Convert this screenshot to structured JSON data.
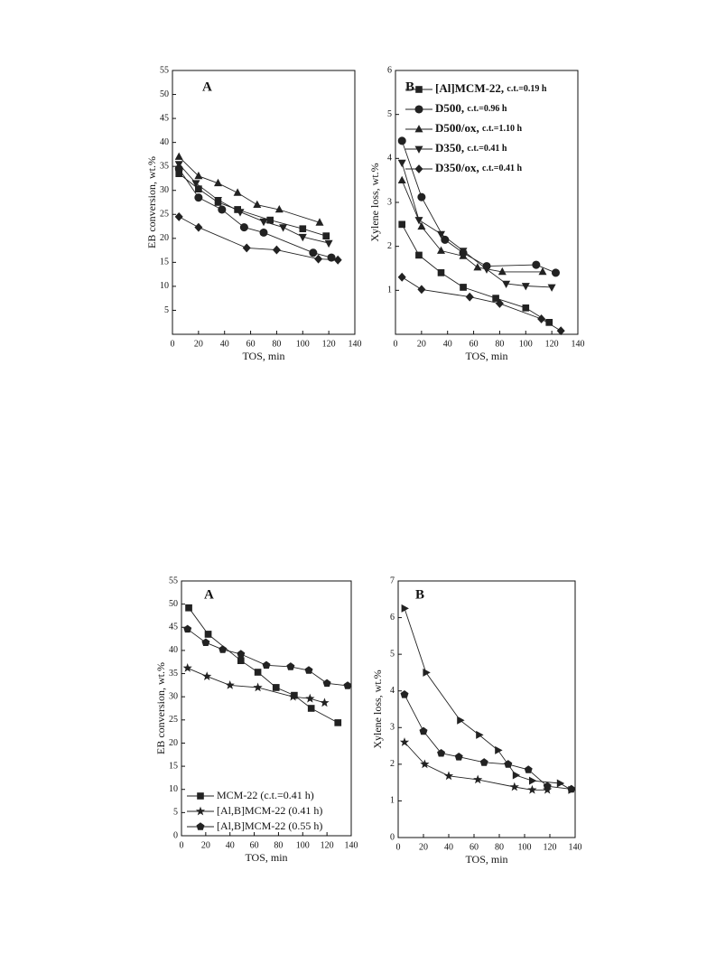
{
  "chart_data": [
    {
      "type": "line",
      "panel": "A",
      "x_label": "TOS, min",
      "y_label": "EB conversion, wt.%",
      "xlim": [
        0,
        140
      ],
      "xticks": [
        0,
        20,
        40,
        60,
        80,
        100,
        120,
        140
      ],
      "ylim": [
        0,
        55
      ],
      "yticks": [
        5,
        10,
        15,
        20,
        25,
        30,
        35,
        40,
        45,
        50,
        55
      ],
      "series": [
        {
          "marker": "square",
          "color": "#222",
          "x": [
            5,
            20,
            35,
            50,
            75,
            100,
            118
          ],
          "values": [
            33.5,
            30.3,
            27.5,
            26,
            23.8,
            22,
            20.5
          ]
        },
        {
          "marker": "circle",
          "color": "#222",
          "x": [
            5,
            20,
            38,
            55,
            70,
            108,
            122
          ],
          "values": [
            34.5,
            28.5,
            26,
            22.3,
            21.2,
            17,
            16
          ]
        },
        {
          "marker": "triangle-up",
          "color": "#222",
          "x": [
            5,
            20,
            35,
            50,
            65,
            82,
            113
          ],
          "values": [
            37,
            33,
            31.5,
            29.5,
            27,
            26,
            23.3
          ]
        },
        {
          "marker": "triangle-down",
          "color": "#222",
          "x": [
            5,
            18,
            35,
            52,
            70,
            85,
            100,
            120
          ],
          "values": [
            35.5,
            31.5,
            28,
            25.5,
            23.5,
            22.3,
            20.3,
            19
          ]
        },
        {
          "marker": "diamond",
          "color": "#222",
          "x": [
            5,
            20,
            57,
            80,
            112,
            127
          ],
          "values": [
            24.5,
            22.3,
            18,
            17.6,
            15.7,
            15.5
          ]
        }
      ]
    },
    {
      "type": "line",
      "panel": "B",
      "x_label": "TOS, min",
      "y_label": "Xylene loss, wt.%",
      "xlim": [
        0,
        140
      ],
      "xticks": [
        0,
        20,
        40,
        60,
        80,
        100,
        120,
        140
      ],
      "ylim": [
        0,
        6
      ],
      "yticks": [
        1,
        2,
        3,
        4,
        5,
        6
      ],
      "legend": "upper left",
      "series": [
        {
          "name": "[Al]MCM-22,",
          "note": "c.t.=0.19 h",
          "marker": "square",
          "color": "#222",
          "x": [
            5,
            18,
            35,
            52,
            77,
            100,
            118
          ],
          "values": [
            2.5,
            1.8,
            1.4,
            1.07,
            0.82,
            0.6,
            0.27
          ]
        },
        {
          "name": "D500,",
          "note": "c.t.=0.96 h",
          "marker": "circle",
          "color": "#222",
          "x": [
            5,
            20,
            38,
            52,
            70,
            108,
            123
          ],
          "values": [
            4.4,
            3.12,
            2.15,
            1.85,
            1.55,
            1.58,
            1.4
          ]
        },
        {
          "name": "D500/ox,",
          "note": "c.t.=1.10 h",
          "marker": "triangle-up",
          "color": "#222",
          "x": [
            5,
            20,
            35,
            52,
            63,
            82,
            113
          ],
          "values": [
            3.5,
            2.45,
            1.9,
            1.78,
            1.52,
            1.42,
            1.42
          ]
        },
        {
          "name": "D350,",
          "note": "c.t.=0.41 h",
          "marker": "triangle-down",
          "color": "#222",
          "x": [
            5,
            18,
            35,
            52,
            70,
            85,
            100,
            120
          ],
          "values": [
            3.9,
            2.6,
            2.28,
            1.9,
            1.48,
            1.15,
            1.1,
            1.07
          ]
        },
        {
          "name": "D350/ox,",
          "note": "c.t.=0.41 h",
          "marker": "diamond",
          "color": "#222",
          "x": [
            5,
            20,
            57,
            80,
            112,
            127
          ],
          "values": [
            1.3,
            1.02,
            0.85,
            0.7,
            0.35,
            0.08
          ]
        }
      ]
    },
    {
      "type": "line",
      "panel": "A",
      "x_label": "TOS, min",
      "y_label": "EB conversion, wt.%",
      "xlim": [
        0,
        140
      ],
      "xticks": [
        0,
        20,
        40,
        60,
        80,
        100,
        120,
        140
      ],
      "ylim": [
        0,
        55
      ],
      "yticks": [
        0,
        5,
        10,
        15,
        20,
        25,
        30,
        35,
        40,
        45,
        50,
        55
      ],
      "legend": "lower left",
      "series": [
        {
          "name": "MCM-22 (c.t.=0.41 h)",
          "marker": "square",
          "color": "#222",
          "x": [
            6,
            22,
            49,
            63,
            78,
            93,
            107,
            129
          ],
          "values": [
            49.2,
            43.5,
            37.8,
            35.3,
            32,
            30.3,
            27.5,
            24.4
          ]
        },
        {
          "name": "[Al,B]MCM-22 (0.41 h)",
          "marker": "star",
          "color": "#222",
          "x": [
            5,
            21,
            40,
            63,
            92,
            106,
            118
          ],
          "values": [
            36.2,
            34.4,
            32.5,
            32,
            30,
            29.6,
            28.7
          ]
        },
        {
          "name": "[Al,B]MCM-22 (0.55 h)",
          "marker": "pentagon",
          "color": "#222",
          "x": [
            5,
            20,
            34,
            49,
            70,
            90,
            105,
            120,
            137
          ],
          "values": [
            44.6,
            41.7,
            40.2,
            39.2,
            36.8,
            36.5,
            35.7,
            32.9,
            32.4
          ]
        }
      ]
    },
    {
      "type": "line",
      "panel": "B",
      "x_label": "TOS, min",
      "y_label": "Xylene loss, wt.%",
      "xlim": [
        0,
        140
      ],
      "xticks": [
        0,
        20,
        40,
        60,
        80,
        100,
        120,
        140
      ],
      "ylim": [
        0,
        7
      ],
      "yticks": [
        0,
        1,
        2,
        3,
        4,
        5,
        6,
        7
      ],
      "series": [
        {
          "marker": "triangle-right",
          "color": "#222",
          "x": [
            5,
            22,
            49,
            64,
            79,
            93,
            106,
            128,
            137
          ],
          "values": [
            6.25,
            4.5,
            3.2,
            2.8,
            2.38,
            1.7,
            1.55,
            1.48,
            1.3
          ]
        },
        {
          "marker": "pentagon",
          "color": "#222",
          "x": [
            5,
            20,
            34,
            48,
            68,
            87,
            103,
            118,
            137
          ],
          "values": [
            3.9,
            2.9,
            2.3,
            2.2,
            2.05,
            2,
            1.85,
            1.4,
            1.32
          ]
        },
        {
          "marker": "star",
          "color": "#222",
          "x": [
            5,
            21,
            40,
            63,
            92,
            106,
            118
          ],
          "values": [
            2.6,
            2.0,
            1.68,
            1.58,
            1.38,
            1.3,
            1.3
          ]
        }
      ]
    }
  ]
}
